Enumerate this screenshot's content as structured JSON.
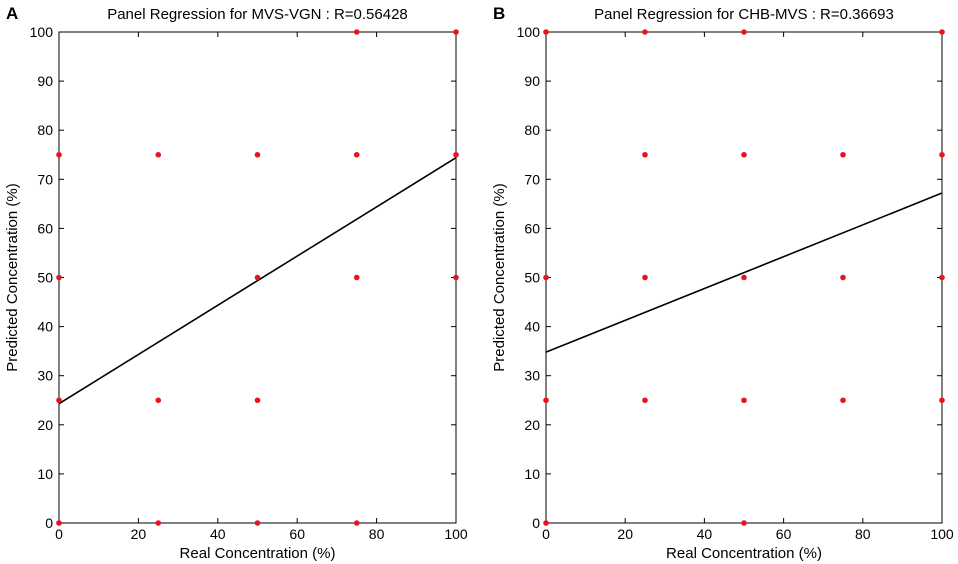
{
  "chart_data": [
    {
      "type": "scatter",
      "panel": "A",
      "title": "Panel Regression for MVS-VGN : R=0.56428",
      "xlabel": "Real Concentration (%)",
      "ylabel": "Predicted Concentration (%)",
      "xlim": [
        0,
        100
      ],
      "ylim": [
        0,
        100
      ],
      "xticks": [
        0,
        20,
        40,
        60,
        80,
        100
      ],
      "yticks": [
        0,
        10,
        20,
        30,
        40,
        50,
        60,
        70,
        80,
        90,
        100
      ],
      "grid": false,
      "point_color": "#e8141b",
      "points": [
        [
          0,
          0
        ],
        [
          0,
          25
        ],
        [
          0,
          50
        ],
        [
          0,
          75
        ],
        [
          25,
          0
        ],
        [
          25,
          25
        ],
        [
          25,
          75
        ],
        [
          50,
          0
        ],
        [
          50,
          25
        ],
        [
          50,
          50
        ],
        [
          50,
          75
        ],
        [
          75,
          0
        ],
        [
          75,
          50
        ],
        [
          75,
          75
        ],
        [
          75,
          100
        ],
        [
          100,
          50
        ],
        [
          100,
          75
        ],
        [
          100,
          100
        ]
      ],
      "regression": {
        "x": [
          0,
          100
        ],
        "y": [
          24.3,
          74.4
        ]
      }
    },
    {
      "type": "scatter",
      "panel": "B",
      "title": "Panel Regression for CHB-MVS : R=0.36693",
      "xlabel": "Real Concentration (%)",
      "ylabel": "Predicted Concentration (%)",
      "xlim": [
        0,
        100
      ],
      "ylim": [
        0,
        100
      ],
      "xticks": [
        0,
        20,
        40,
        60,
        80,
        100
      ],
      "yticks": [
        0,
        10,
        20,
        30,
        40,
        50,
        60,
        70,
        80,
        90,
        100
      ],
      "grid": false,
      "point_color": "#e8141b",
      "points": [
        [
          0,
          0
        ],
        [
          0,
          25
        ],
        [
          0,
          50
        ],
        [
          0,
          100
        ],
        [
          25,
          25
        ],
        [
          25,
          50
        ],
        [
          25,
          75
        ],
        [
          25,
          100
        ],
        [
          50,
          0
        ],
        [
          50,
          25
        ],
        [
          50,
          50
        ],
        [
          50,
          75
        ],
        [
          50,
          100
        ],
        [
          75,
          25
        ],
        [
          75,
          50
        ],
        [
          75,
          75
        ],
        [
          100,
          25
        ],
        [
          100,
          50
        ],
        [
          100,
          75
        ],
        [
          100,
          100
        ]
      ],
      "regression": {
        "x": [
          0,
          100
        ],
        "y": [
          34.8,
          67.2
        ]
      }
    }
  ]
}
